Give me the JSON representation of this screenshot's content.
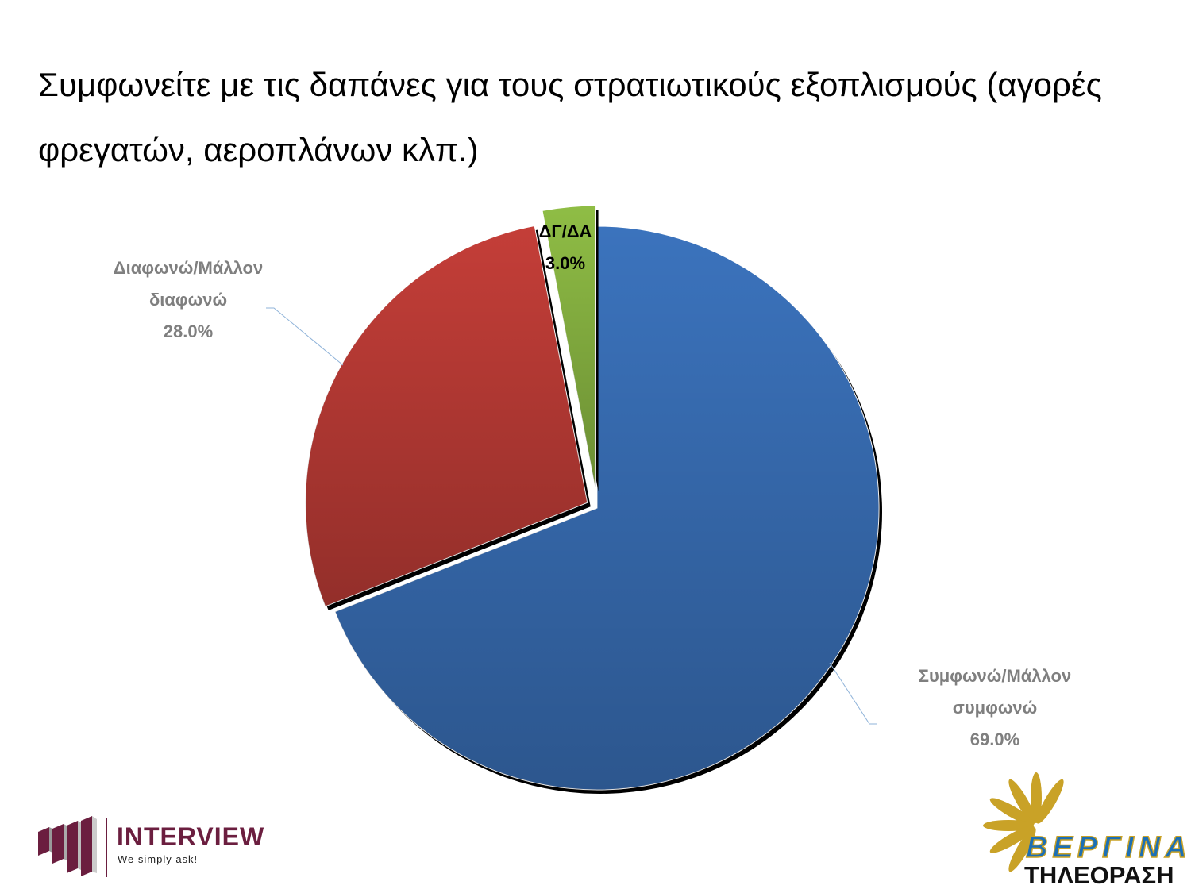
{
  "chart_data": {
    "type": "pie",
    "title": "Συμφωνείτε με τις δαπάνες για τους στρατιωτικούς εξοπλισμούς (αγορές φρεγατών, αεροπλάνων κλπ.)",
    "categories": [
      "Συμφωνώ/Μάλλον συμφωνώ",
      "Διαφωνώ/Μάλλον διαφωνώ",
      "ΔΓ/ΔΑ"
    ],
    "values": [
      69,
      28,
      3
    ],
    "value_labels": [
      "69.0%",
      "28.0%",
      "3.0%"
    ],
    "colors": [
      "#3b73bd",
      "#c43e38",
      "#8fbd45"
    ]
  },
  "logos": {
    "interview": {
      "name": "INTERVIEW",
      "tagline": "We simply ask!"
    },
    "vergina": {
      "name": "ΒΕΡΓΙΝΑ",
      "subtitle": "ΤΗΛΕΟΡΑΣΗ"
    }
  }
}
